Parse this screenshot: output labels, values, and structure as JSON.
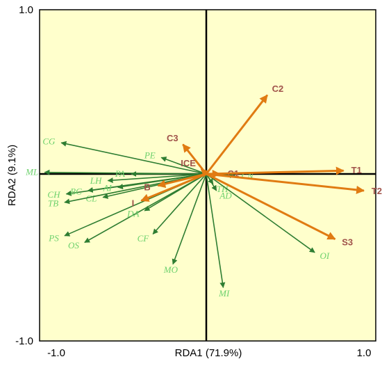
{
  "colors": {
    "plot_background": "#ffffcc",
    "species_arrow": "#2e7d32",
    "species_label": "#6dd16d",
    "env_arrow": "#e07b12",
    "env_label": "#a0524a",
    "axis": "#000000"
  },
  "chart_data": {
    "type": "biplot",
    "title": "",
    "xlabel": "RDA1 (71.9%)",
    "ylabel": "RDA2 (9.1%)",
    "xlim": [
      -1.0,
      1.0
    ],
    "ylim": [
      -1.0,
      1.0
    ],
    "x_tick_labels": [
      "-1.0",
      "1.0"
    ],
    "y_tick_labels": [
      "1.0",
      "-1.0"
    ],
    "grid": false,
    "species": [
      {
        "name": "CG",
        "x": -0.87,
        "y": 0.19
      },
      {
        "name": "ML",
        "x": -0.97,
        "y": 0.01
      },
      {
        "name": "PE",
        "x": -0.27,
        "y": 0.1
      },
      {
        "name": "PA",
        "x": -0.45,
        "y": 0.0
      },
      {
        "name": "LH",
        "x": -0.59,
        "y": -0.04
      },
      {
        "name": "CH",
        "x": -0.84,
        "y": -0.12
      },
      {
        "name": "BC",
        "x": -0.71,
        "y": -0.1
      },
      {
        "name": "AI",
        "x": -0.53,
        "y": -0.08
      },
      {
        "name": "CL",
        "x": -0.62,
        "y": -0.14
      },
      {
        "name": "TB",
        "x": -0.85,
        "y": -0.17
      },
      {
        "name": "PS",
        "x": -0.85,
        "y": -0.37
      },
      {
        "name": "OS",
        "x": -0.73,
        "y": -0.41
      },
      {
        "name": "DA",
        "x": -0.37,
        "y": -0.22
      },
      {
        "name": "CF",
        "x": -0.32,
        "y": -0.36
      },
      {
        "name": "MO",
        "x": -0.2,
        "y": -0.54
      },
      {
        "name": "MI",
        "x": 0.1,
        "y": -0.68
      },
      {
        "name": "TH",
        "x": 0.04,
        "y": -0.06
      },
      {
        "name": "AD",
        "x": 0.06,
        "y": -0.1
      },
      {
        "name": "CN",
        "x": 0.17,
        "y": -0.01
      },
      {
        "name": "OI",
        "x": 0.64,
        "y": -0.47
      }
    ],
    "environment": [
      {
        "name": "C2",
        "x": 0.36,
        "y": 0.48
      },
      {
        "name": "C3",
        "x": -0.14,
        "y": 0.18
      },
      {
        "name": "ICE",
        "x": -0.03,
        "y": 0.03
      },
      {
        "name": "C1",
        "x": 0.08,
        "y": 0.0
      },
      {
        "name": "T1",
        "x": 0.81,
        "y": 0.02
      },
      {
        "name": "T2",
        "x": 0.93,
        "y": -0.1
      },
      {
        "name": "S3",
        "x": 0.76,
        "y": -0.39
      },
      {
        "name": "B",
        "x": -0.29,
        "y": -0.07
      },
      {
        "name": "I",
        "x": -0.39,
        "y": -0.16
      }
    ]
  }
}
